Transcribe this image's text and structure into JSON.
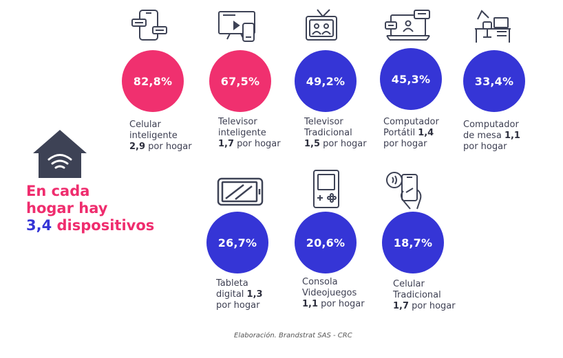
{
  "colors": {
    "pink": "#f0306f",
    "blue": "#3535d6",
    "icon": "#3d4255",
    "text": "#3d3f52"
  },
  "headline": {
    "line1": "En cada",
    "line2": "hogar hay",
    "line3_value": "3,4",
    "line3_rest": "dispositivos"
  },
  "source": "Elaboración. Brandstrat SAS - CRC",
  "chart_data": {
    "type": "bubble-list",
    "unit": "% de hogares",
    "items": [
      {
        "key": "cel-int",
        "value_label": "82,8%",
        "value": 82.8,
        "color": "pink",
        "icon": "smartphone-chat-icon",
        "name_lines": [
          "Celular",
          "inteligente"
        ],
        "per_home_value": "2,9",
        "per_home_suffix": "por hogar"
      },
      {
        "key": "tv-int",
        "value_label": "67,5%",
        "value": 67.5,
        "color": "pink",
        "icon": "smart-tv-icon",
        "name_lines": [
          "Televisor",
          "inteligente"
        ],
        "per_home_value": "1,7",
        "per_home_suffix": "por hogar"
      },
      {
        "key": "tv-trad",
        "value_label": "49,2%",
        "value": 49.2,
        "color": "blue",
        "icon": "retro-tv-icon",
        "name_lines": [
          "Televisor",
          "Tradicional"
        ],
        "per_home_value": "1,5",
        "per_home_suffix": "por hogar"
      },
      {
        "key": "laptop",
        "value_label": "45,3%",
        "value": 45.3,
        "color": "blue",
        "icon": "laptop-chat-icon",
        "name_lines": [
          "Computador",
          "Portátil"
        ],
        "per_home_value": "1,4",
        "per_home_suffix": "por hogar",
        "inline_value_line": 1
      },
      {
        "key": "desktop",
        "value_label": "33,4%",
        "value": 33.4,
        "color": "blue",
        "icon": "desk-icon",
        "name_lines": [
          "Computador",
          "de mesa"
        ],
        "per_home_value": "1,1",
        "per_home_suffix": "por hogar",
        "inline_value_line": 1
      },
      {
        "key": "tablet",
        "value_label": "26,7%",
        "value": 26.7,
        "color": "blue",
        "icon": "tablet-icon",
        "name_lines": [
          "Tableta",
          "digital"
        ],
        "per_home_value": "1,3",
        "per_home_suffix": "por hogar",
        "inline_value_line": 1
      },
      {
        "key": "console",
        "value_label": "20,6%",
        "value": 20.6,
        "color": "blue",
        "icon": "game-console-icon",
        "name_lines": [
          "Consola",
          "Videojuegos"
        ],
        "per_home_value": "1,1",
        "per_home_suffix": "por hogar"
      },
      {
        "key": "cel-trad",
        "value_label": "18,7%",
        "value": 18.7,
        "color": "blue",
        "icon": "phone-contactless-icon",
        "name_lines": [
          "Celular",
          "Tradicional"
        ],
        "per_home_value": "1,7",
        "per_home_suffix": "por hogar"
      }
    ]
  }
}
